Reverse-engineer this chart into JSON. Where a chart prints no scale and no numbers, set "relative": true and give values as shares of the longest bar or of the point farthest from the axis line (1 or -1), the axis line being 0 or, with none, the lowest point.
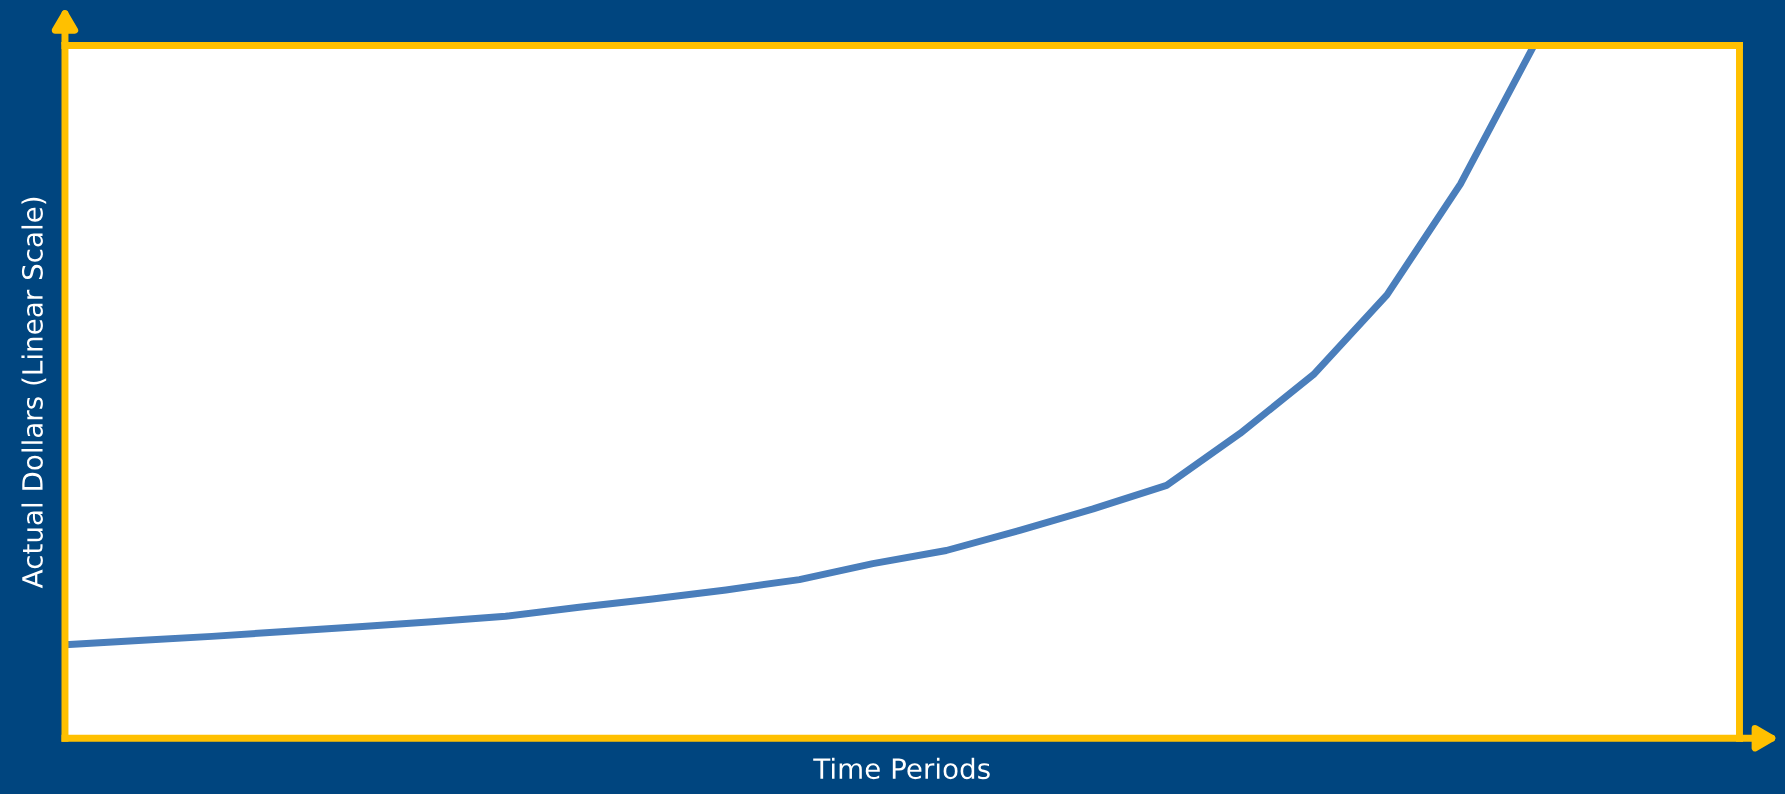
{
  "chart_data": {
    "type": "line",
    "relative": true,
    "xlabel": "Time Periods",
    "ylabel": "Actual Dollars (Linear Scale)",
    "categories": [
      null,
      null,
      null,
      null,
      null,
      null,
      null,
      null,
      null,
      null,
      null,
      null,
      null,
      null,
      null,
      null,
      null,
      null,
      null,
      null,
      null,
      null,
      null
    ],
    "series": [
      {
        "color": "#4a7ebb",
        "values": [
          0.135,
          0.141,
          0.147,
          0.154,
          0.161,
          0.168,
          0.176,
          0.189,
          0.201,
          0.214,
          0.229,
          0.252,
          0.271,
          0.3,
          0.331,
          0.365,
          0.44,
          0.525,
          0.64,
          0.8,
          1.0,
          null,
          null
        ]
      }
    ],
    "marker": "none",
    "line_style": "solid",
    "legend": false,
    "tick_labels": false
  }
}
